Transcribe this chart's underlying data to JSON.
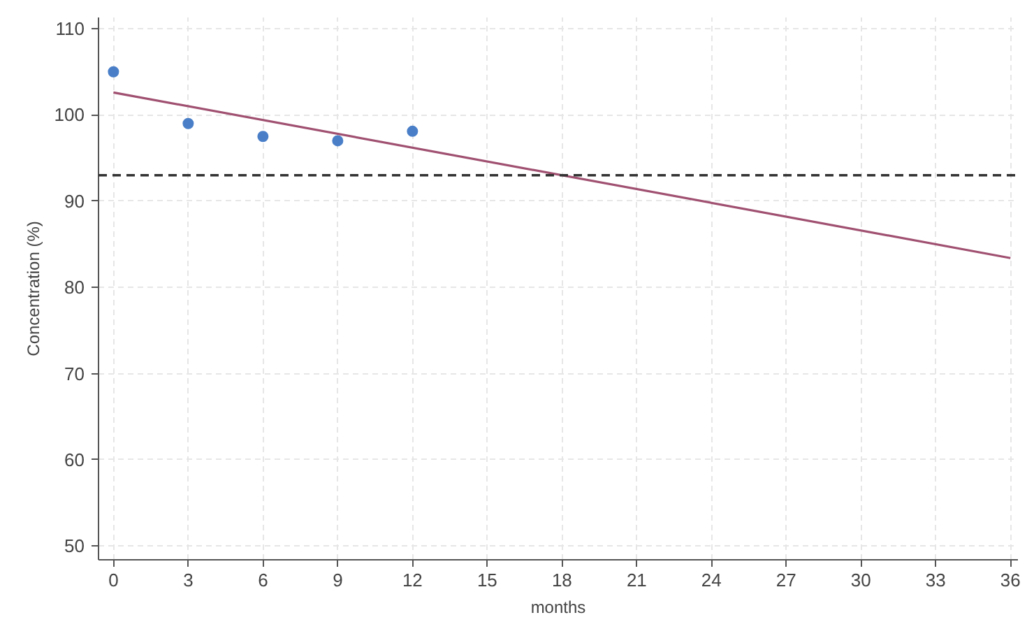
{
  "chart_data": {
    "type": "scatter",
    "xlabel": "months",
    "ylabel": "Concentration (%)",
    "series": [
      {
        "color": "#4a7fc8",
        "x": [
          0,
          3,
          6,
          9,
          12
        ],
        "values": [
          105,
          99,
          97.5,
          97,
          98.1
        ],
        "marker": "circle"
      },
      {
        "type": "line",
        "color": "#a05070",
        "x": [
          0,
          36
        ],
        "values": [
          102.6,
          83.4
        ],
        "line_style": "solid"
      }
    ],
    "ref_lines": [
      {
        "axis": "y",
        "value": 93,
        "color": "#333333",
        "line_style": "dashed"
      }
    ],
    "xlim": [
      -0.6,
      36.3
    ],
    "ylim": [
      48.4,
      111.3
    ],
    "xticks": [
      0,
      3,
      6,
      9,
      12,
      15,
      18,
      21,
      24,
      27,
      30,
      33,
      36
    ],
    "yticks": [
      50,
      60,
      70,
      80,
      90,
      100,
      110
    ],
    "grid": true
  }
}
